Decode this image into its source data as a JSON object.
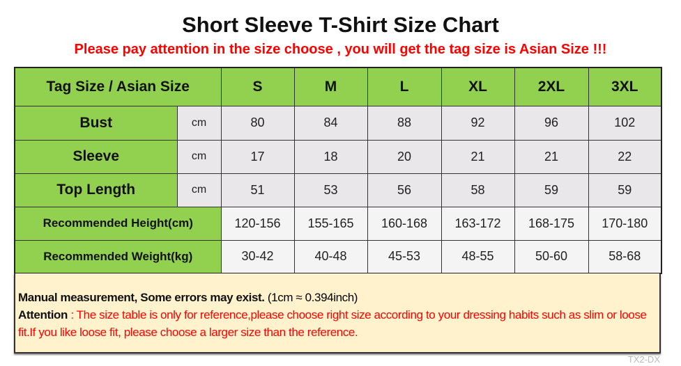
{
  "title": "Short Sleeve T-Shirt Size Chart",
  "subtitle": "Please pay attention in the size choose , you will get the tag size is Asian Size !!!",
  "table": {
    "header_label": "Tag Size / Asian Size",
    "sizes": [
      "S",
      "M",
      "L",
      "XL",
      "2XL",
      "3XL"
    ],
    "rows": [
      {
        "label": "Bust",
        "unit": "cm",
        "values": [
          "80",
          "84",
          "88",
          "92",
          "96",
          "102"
        ]
      },
      {
        "label": "Sleeve",
        "unit": "cm",
        "values": [
          "17",
          "18",
          "20",
          "21",
          "21",
          "22"
        ]
      },
      {
        "label": "Top Length",
        "unit": "cm",
        "values": [
          "51",
          "53",
          "56",
          "58",
          "59",
          "59"
        ]
      },
      {
        "label": "Recommended Height(cm)",
        "values": [
          "120-156",
          "155-165",
          "160-168",
          "163-172",
          "168-175",
          "170-180"
        ]
      },
      {
        "label": "Recommended Weight(kg)",
        "values": [
          "30-42",
          "40-48",
          "45-53",
          "48-55",
          "50-60",
          "58-68"
        ]
      }
    ]
  },
  "note": {
    "line1_bold": "Manual measurement, Some errors may exist.",
    "line1_rest": " (1cm ≈ 0.394inch)",
    "attention_label": "Attention",
    "attention_sep": " : ",
    "attention_text": "The size table is only for reference,please choose right size according to your dressing habits such as slim or loose fit.If you like loose fit, please choose a larger size than the reference."
  },
  "watermark": "TX2-DX",
  "colors": {
    "header_green": "#92d050",
    "cell_gray": "#e9e7e9",
    "note_bg": "#fff2cc",
    "warning_red": "#ff0000"
  }
}
